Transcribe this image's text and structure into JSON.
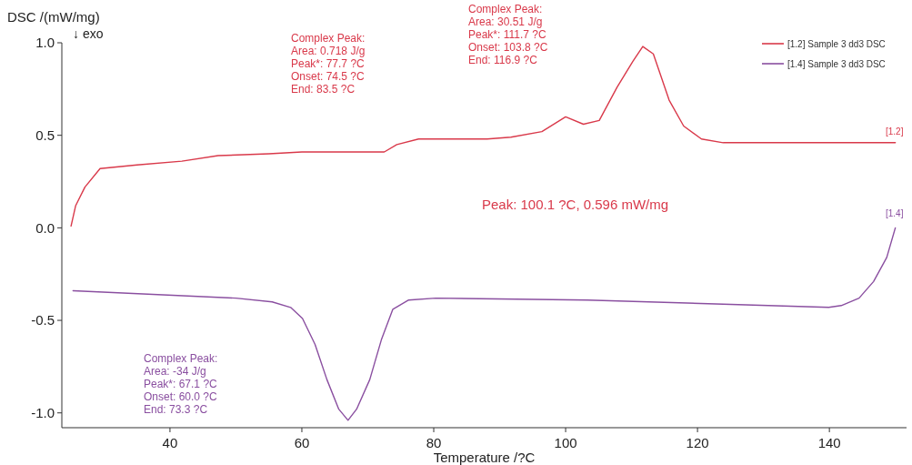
{
  "chart_data": {
    "type": "line",
    "xlabel": "Temperature /?C",
    "ylabel": "DSC /(mW/mg)",
    "xlim": [
      23.6,
      151.7
    ],
    "ylim": [
      -1.08,
      1.0
    ],
    "xticks": [
      40,
      60,
      80,
      100,
      120,
      140
    ],
    "yticks": [
      {
        "value": 1.0,
        "label": "1.0"
      },
      {
        "value": 0.5,
        "label": "0.5"
      },
      {
        "value": 0,
        "label": "0.0"
      },
      {
        "value": -0.5,
        "label": "-0.5"
      },
      {
        "value": -1.0,
        "label": "-1.0"
      }
    ],
    "grid": false,
    "legend": "top right",
    "marker": "none",
    "line_style": "solid",
    "series": [
      {
        "name": "[1.2] Sample 3 dd3 DSC",
        "color": "#d9394a",
        "x": [
          25.0,
          25.7,
          27.1,
          29.4,
          35,
          41.8,
          47.3,
          55,
          60,
          67,
          72.5,
          74.4,
          77.7,
          80.3,
          84.8,
          88.1,
          91.7,
          96.4,
          100.0,
          102.7,
          105.1,
          107.8,
          110.2,
          111.7,
          113.3,
          115.7,
          117.9,
          120.6,
          123.9,
          135.3,
          150.0
        ],
        "values": [
          0.01,
          0.12,
          0.22,
          0.32,
          0.34,
          0.36,
          0.39,
          0.4,
          0.41,
          0.41,
          0.41,
          0.45,
          0.48,
          0.48,
          0.48,
          0.48,
          0.49,
          0.52,
          0.6,
          0.56,
          0.58,
          0.76,
          0.9,
          0.98,
          0.94,
          0.69,
          0.55,
          0.48,
          0.46,
          0.46,
          0.46
        ]
      },
      {
        "name": "[1.4] Sample 3 dd3 DSC",
        "color": "#8a4fa0",
        "x": [
          25.3,
          50.0,
          55.5,
          58.3,
          60.1,
          62.0,
          63.8,
          65.6,
          67.0,
          68.3,
          70.3,
          72.1,
          73.8,
          76.2,
          80.3,
          103.3,
          121.6,
          139.9,
          141.8,
          144.5,
          146.7,
          148.7,
          150.0
        ],
        "values": [
          -0.34,
          -0.38,
          -0.4,
          -0.43,
          -0.49,
          -0.63,
          -0.82,
          -0.98,
          -1.04,
          -0.98,
          -0.82,
          -0.6,
          -0.44,
          -0.39,
          -0.38,
          -0.39,
          -0.41,
          -0.43,
          -0.42,
          -0.38,
          -0.29,
          -0.16,
          0.0
        ]
      }
    ],
    "annotations": [
      "↓ exo",
      "Complex Peak:\nArea: 0.718 J/g\nPeak*: 77.7 ?C\nOnset: 74.5 ?C\nEnd: 83.5 ?C",
      "Complex Peak:\nArea: 30.51 J/g\nPeak*: 111.7 ?C\nOnset: 103.8 ?C\nEnd: 116.9 ?C",
      "Peak: 100.1 ?C, 0.596 mW/mg",
      "Complex Peak:\nArea: -34 J/g\nPeak*: 67.1 ?C\nOnset: 60.0 ?C\nEnd: 73.3 ?C",
      "[1.2]",
      "[1.4]"
    ]
  }
}
